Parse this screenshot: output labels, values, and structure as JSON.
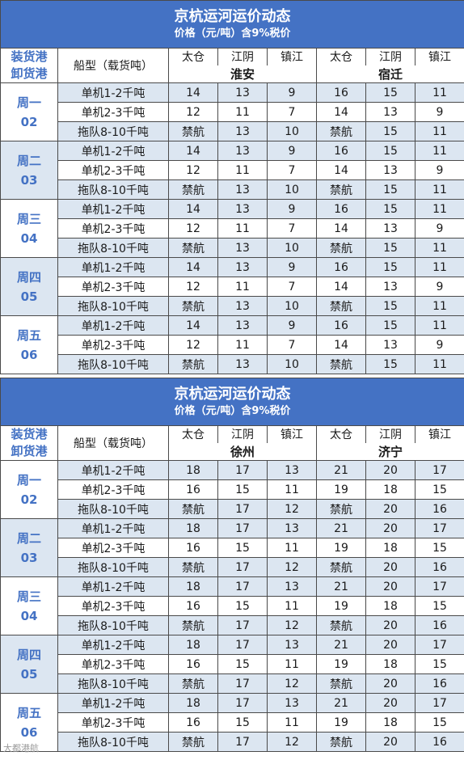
{
  "blocks": [
    {
      "title": "京杭运河运价动态",
      "subtitle": "价格（元/吨）含9%税价",
      "header": {
        "load_port_label": "装货港",
        "unload_port_label": "卸货港",
        "ship_type_label": "船型（载货吨）",
        "origin_ports": [
          "太仓",
          "江阴",
          "镇江",
          "太仓",
          "江阴",
          "镇江"
        ],
        "destinations": [
          "淮安",
          "宿迁"
        ]
      },
      "days": [
        {
          "weekday": "周一",
          "date": "02",
          "rows": [
            {
              "type": "单机1-2千吨",
              "values": [
                "14",
                "13",
                "9",
                "16",
                "15",
                "11"
              ]
            },
            {
              "type": "单机2-3千吨",
              "values": [
                "12",
                "11",
                "7",
                "14",
                "13",
                "9"
              ]
            },
            {
              "type": "拖队8-10千吨",
              "values": [
                "禁航",
                "13",
                "10",
                "禁航",
                "15",
                "11"
              ]
            }
          ]
        },
        {
          "weekday": "周二",
          "date": "03",
          "rows": [
            {
              "type": "单机1-2千吨",
              "values": [
                "14",
                "13",
                "9",
                "16",
                "15",
                "11"
              ]
            },
            {
              "type": "单机2-3千吨",
              "values": [
                "12",
                "11",
                "7",
                "14",
                "13",
                "9"
              ]
            },
            {
              "type": "拖队8-10千吨",
              "values": [
                "禁航",
                "13",
                "10",
                "禁航",
                "15",
                "11"
              ]
            }
          ]
        },
        {
          "weekday": "周三",
          "date": "04",
          "rows": [
            {
              "type": "单机1-2千吨",
              "values": [
                "14",
                "13",
                "9",
                "16",
                "15",
                "11"
              ]
            },
            {
              "type": "单机2-3千吨",
              "values": [
                "12",
                "11",
                "7",
                "14",
                "13",
                "9"
              ]
            },
            {
              "type": "拖队8-10千吨",
              "values": [
                "禁航",
                "13",
                "10",
                "禁航",
                "15",
                "11"
              ]
            }
          ]
        },
        {
          "weekday": "周四",
          "date": "05",
          "rows": [
            {
              "type": "单机1-2千吨",
              "values": [
                "14",
                "13",
                "9",
                "16",
                "15",
                "11"
              ]
            },
            {
              "type": "单机2-3千吨",
              "values": [
                "12",
                "11",
                "7",
                "14",
                "13",
                "9"
              ]
            },
            {
              "type": "拖队8-10千吨",
              "values": [
                "禁航",
                "13",
                "10",
                "禁航",
                "15",
                "11"
              ]
            }
          ]
        },
        {
          "weekday": "周五",
          "date": "06",
          "rows": [
            {
              "type": "单机1-2千吨",
              "values": [
                "14",
                "13",
                "9",
                "16",
                "15",
                "11"
              ]
            },
            {
              "type": "单机2-3千吨",
              "values": [
                "12",
                "11",
                "7",
                "14",
                "13",
                "9"
              ]
            },
            {
              "type": "拖队8-10千吨",
              "values": [
                "禁航",
                "13",
                "10",
                "禁航",
                "15",
                "11"
              ]
            }
          ]
        }
      ]
    },
    {
      "title": "京杭运河运价动态",
      "subtitle": "价格（元/吨）含9%税价",
      "header": {
        "load_port_label": "装货港",
        "unload_port_label": "卸货港",
        "ship_type_label": "船型（载货吨）",
        "origin_ports": [
          "太仓",
          "江阴",
          "镇江",
          "太仓",
          "江阴",
          "镇江"
        ],
        "destinations": [
          "徐州",
          "济宁"
        ]
      },
      "days": [
        {
          "weekday": "周一",
          "date": "02",
          "rows": [
            {
              "type": "单机1-2千吨",
              "values": [
                "18",
                "17",
                "13",
                "21",
                "20",
                "17"
              ]
            },
            {
              "type": "单机2-3千吨",
              "values": [
                "16",
                "15",
                "11",
                "19",
                "18",
                "15"
              ]
            },
            {
              "type": "拖队8-10千吨",
              "values": [
                "禁航",
                "17",
                "12",
                "禁航",
                "20",
                "16"
              ]
            }
          ]
        },
        {
          "weekday": "周二",
          "date": "03",
          "rows": [
            {
              "type": "单机1-2千吨",
              "values": [
                "18",
                "17",
                "13",
                "21",
                "20",
                "17"
              ]
            },
            {
              "type": "单机2-3千吨",
              "values": [
                "16",
                "15",
                "11",
                "19",
                "18",
                "15"
              ]
            },
            {
              "type": "拖队8-10千吨",
              "values": [
                "禁航",
                "17",
                "12",
                "禁航",
                "20",
                "16"
              ]
            }
          ]
        },
        {
          "weekday": "周三",
          "date": "04",
          "rows": [
            {
              "type": "单机1-2千吨",
              "values": [
                "18",
                "17",
                "13",
                "21",
                "20",
                "17"
              ]
            },
            {
              "type": "单机2-3千吨",
              "values": [
                "16",
                "15",
                "11",
                "19",
                "18",
                "15"
              ]
            },
            {
              "type": "拖队8-10千吨",
              "values": [
                "禁航",
                "17",
                "12",
                "禁航",
                "20",
                "16"
              ]
            }
          ]
        },
        {
          "weekday": "周四",
          "date": "05",
          "rows": [
            {
              "type": "单机1-2千吨",
              "values": [
                "18",
                "17",
                "13",
                "21",
                "20",
                "17"
              ]
            },
            {
              "type": "单机2-3千吨",
              "values": [
                "16",
                "15",
                "11",
                "19",
                "18",
                "15"
              ]
            },
            {
              "type": "拖队8-10千吨",
              "values": [
                "禁航",
                "17",
                "12",
                "禁航",
                "20",
                "16"
              ]
            }
          ]
        },
        {
          "weekday": "周五",
          "date": "06",
          "rows": [
            {
              "type": "单机1-2千吨",
              "values": [
                "18",
                "17",
                "13",
                "21",
                "20",
                "17"
              ]
            },
            {
              "type": "单机2-3千吨",
              "values": [
                "16",
                "15",
                "11",
                "19",
                "18",
                "15"
              ]
            },
            {
              "type": "拖队8-10千吨",
              "values": [
                "禁航",
                "17",
                "12",
                "禁航",
                "20",
                "16"
              ]
            }
          ]
        }
      ]
    }
  ],
  "watermark": "大都港航",
  "colors": {
    "title_bg": "#4472c4",
    "band_bg": "#dce6f1",
    "accent_text": "#4472c4"
  }
}
